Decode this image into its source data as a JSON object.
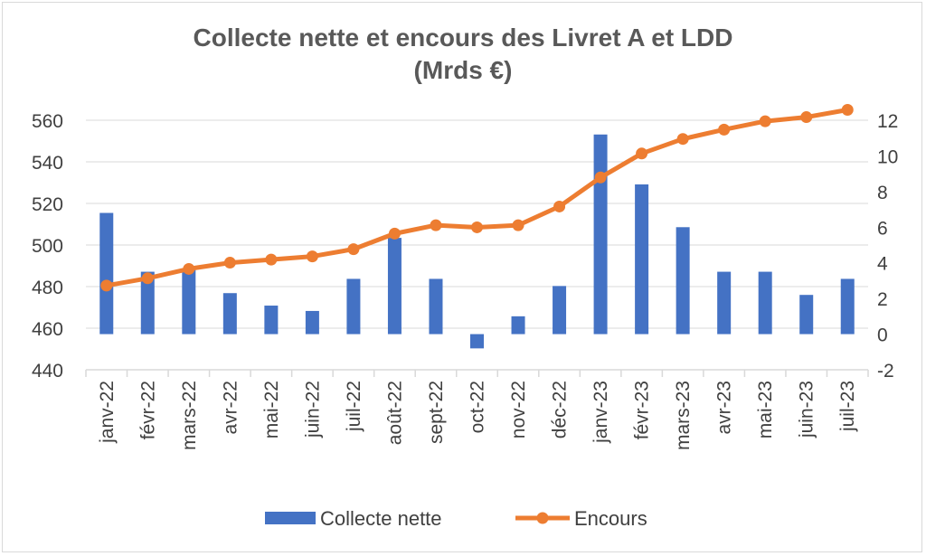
{
  "chart_data": {
    "type": "bar+line",
    "title": "Collecte nette et encours des Livret A et LDD",
    "subtitle": "(Mrds €)",
    "categories": [
      "janv-22",
      "févr-22",
      "mars-22",
      "avr-22",
      "mai-22",
      "juin-22",
      "juil-22",
      "août-22",
      "sept-22",
      "oct-22",
      "nov-22",
      "déc-22",
      "janv-23",
      "févr-23",
      "mars-23",
      "avr-23",
      "mai-23",
      "juin-23",
      "juil-23"
    ],
    "series": [
      {
        "name": "Collecte nette",
        "type": "bar",
        "axis": "right",
        "color": "#4472c4",
        "values": [
          6.8,
          3.5,
          3.6,
          2.3,
          1.6,
          1.3,
          3.1,
          5.4,
          3.1,
          -0.8,
          1.0,
          2.7,
          11.2,
          8.4,
          6.0,
          3.5,
          3.5,
          2.2,
          3.1
        ]
      },
      {
        "name": "Encours",
        "type": "line",
        "axis": "left",
        "color": "#ed7d31",
        "values": [
          480.5,
          484.0,
          488.5,
          491.5,
          493.0,
          494.5,
          498.0,
          505.5,
          509.5,
          508.5,
          509.5,
          518.5,
          532.5,
          544.0,
          551.0,
          555.5,
          559.5,
          561.5,
          565.0
        ]
      }
    ],
    "left_axis": {
      "ylim": [
        440,
        560
      ],
      "ticks": [
        440,
        460,
        480,
        500,
        520,
        540,
        560
      ]
    },
    "right_axis": {
      "ylim": [
        -2,
        12
      ],
      "ticks": [
        -2,
        0,
        2,
        4,
        6,
        8,
        10,
        12
      ]
    },
    "grid": true,
    "legend": {
      "placement": "bottom",
      "entries": [
        "Collecte nette",
        "Encours"
      ]
    }
  }
}
